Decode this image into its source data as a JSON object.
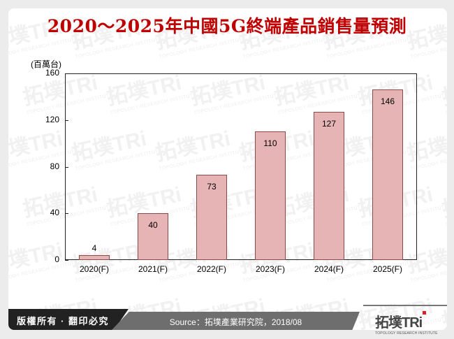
{
  "title": "2020～2025年中國5G終端產品銷售量預測",
  "footer": {
    "copyright": "版權所有 · 翻印必究",
    "source": "Source：拓墣產業研究院，2018/08",
    "logo_cn": "拓墣TRi",
    "logo_en": "TOPOLOGY RESEARCH INSTITUTE"
  },
  "watermark": {
    "text": "拓墣TRi",
    "sub": "TOPOLOGY RESEARCH INSTITUTE"
  },
  "colors": {
    "title": "#c00000",
    "bar_fill": "#e6b4b4",
    "bar_border": "#8b4a4a"
  },
  "chart_data": {
    "type": "bar",
    "title": "2020～2025年中國5G終端產品銷售量預測",
    "ylabel": "(百萬台)",
    "xlabel": "",
    "categories": [
      "2020(F)",
      "2021(F)",
      "2022(F)",
      "2023(F)",
      "2024(F)",
      "2025(F)"
    ],
    "values": [
      4,
      40,
      73,
      110,
      127,
      146
    ],
    "value_labels": [
      "4",
      "40",
      "73",
      "110",
      "127",
      "146"
    ],
    "yticks": [
      "0",
      "40",
      "80",
      "120",
      "160"
    ],
    "ylim": [
      0,
      160
    ],
    "grid": false,
    "legend": null,
    "source": "Source：拓墣產業研究院，2018/08"
  }
}
